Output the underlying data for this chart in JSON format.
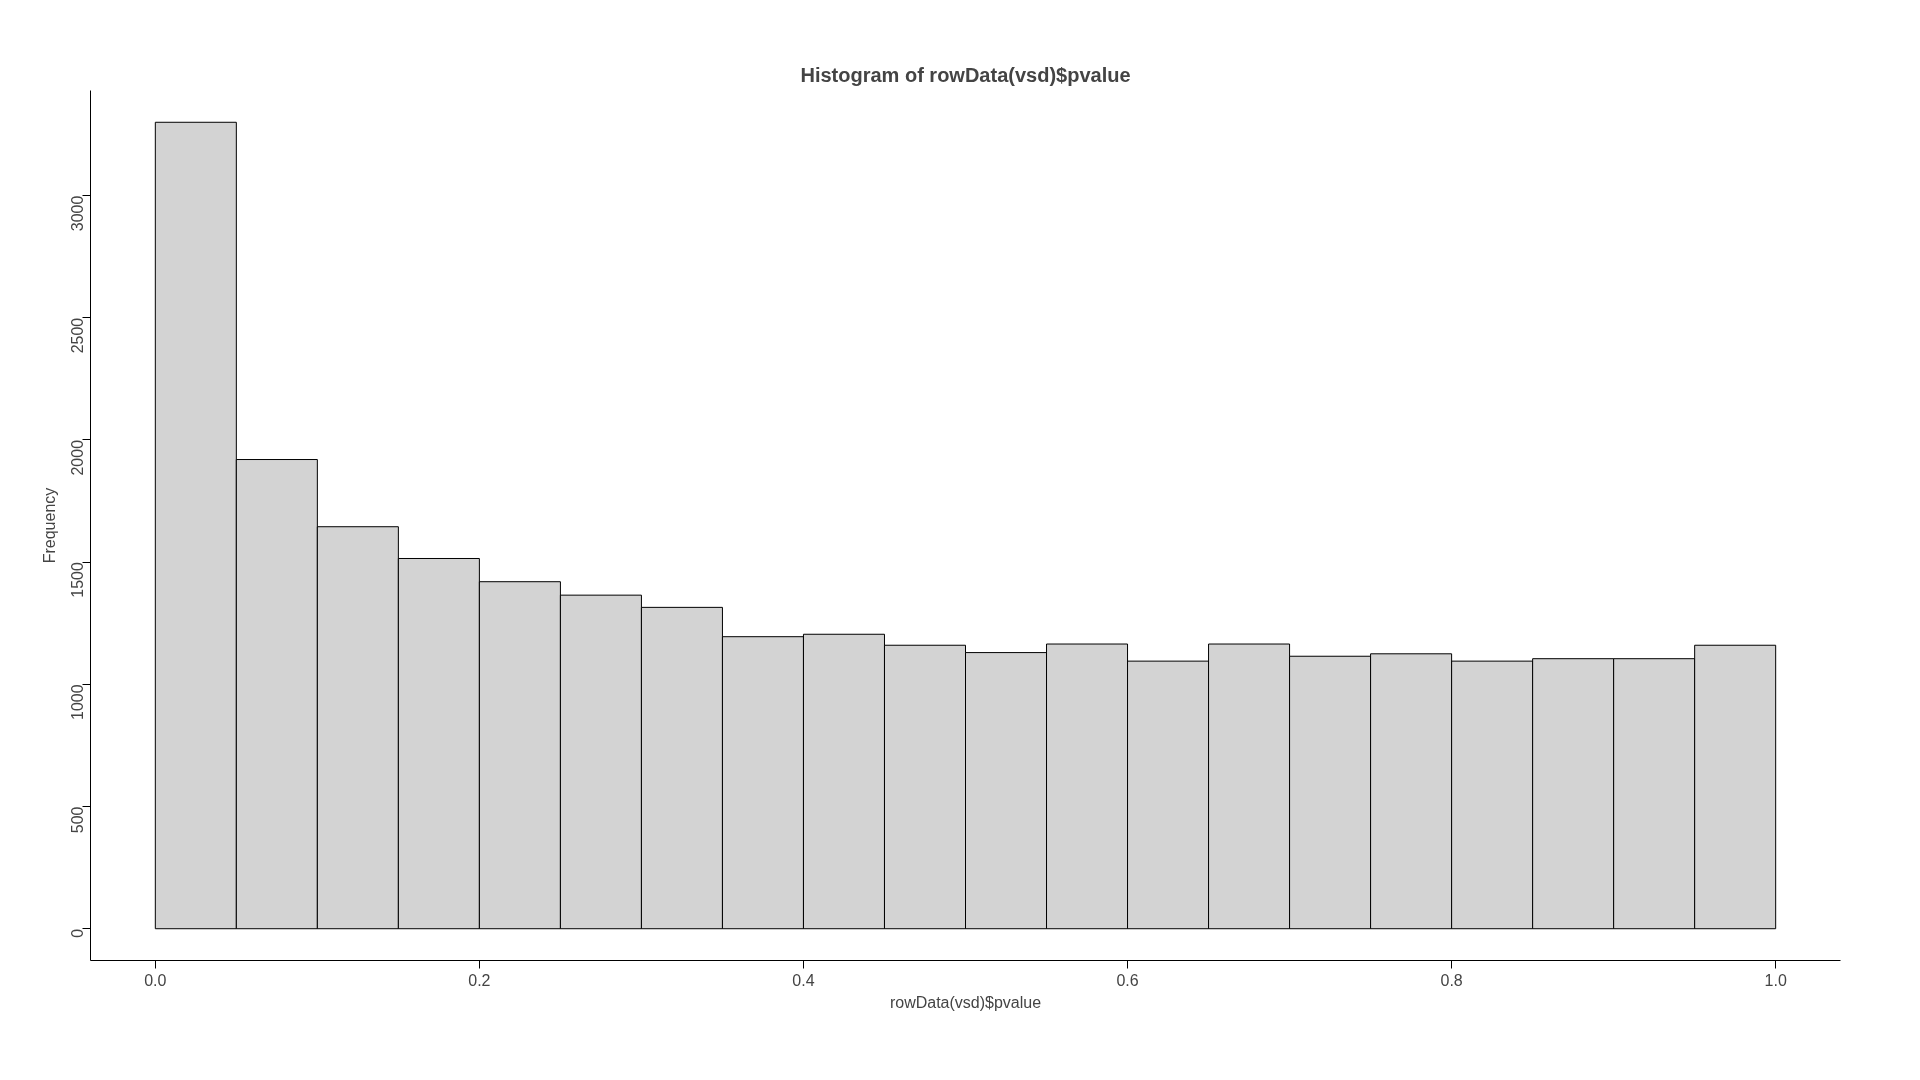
{
  "chart_data": {
    "type": "histogram",
    "title": "Histogram of rowData(vsd)$pvalue",
    "xlabel": "rowData(vsd)$pvalue",
    "ylabel": "Frequency",
    "bins": [
      0,
      0.05,
      0.1,
      0.15,
      0.2,
      0.25,
      0.3,
      0.35,
      0.4,
      0.45,
      0.5,
      0.55,
      0.6,
      0.65,
      0.7,
      0.75,
      0.8,
      0.85,
      0.9,
      0.95,
      1.0
    ],
    "values": [
      3300,
      1920,
      1645,
      1515,
      1420,
      1365,
      1315,
      1195,
      1205,
      1160,
      1130,
      1165,
      1095,
      1165,
      1115,
      1125,
      1095,
      1105,
      1105,
      1160
    ],
    "color": "#d3d3d3",
    "xlim": [
      -0.04,
      1.04
    ],
    "ylim": [
      -130,
      3430
    ],
    "xticks": [
      {
        "value": 0,
        "label": "0.0"
      },
      0.2,
      0.4,
      0.6,
      0.8,
      {
        "value": 1,
        "label": "1.0"
      }
    ],
    "yticks": [
      0,
      500,
      1000,
      1500,
      2000,
      2500,
      3000
    ],
    "grid": false
  }
}
